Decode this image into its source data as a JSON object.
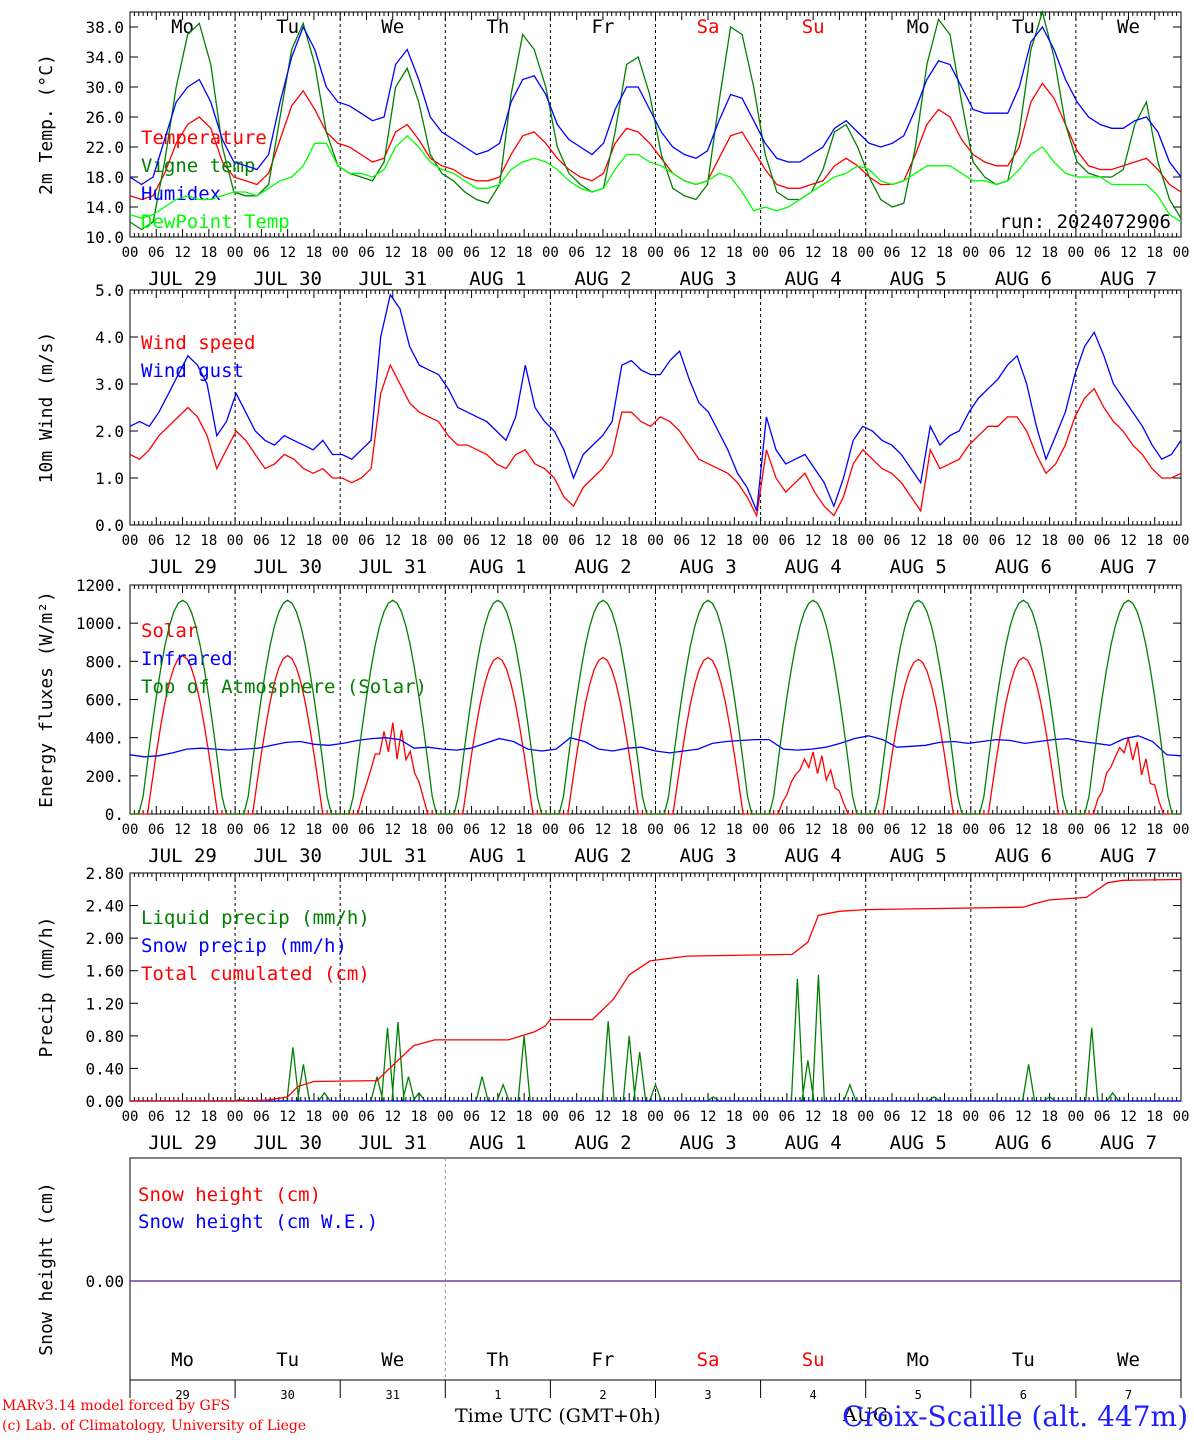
{
  "chart_data": [
    {
      "type": "line",
      "ylabel": "2m Temp. (°C)",
      "ylim": [
        10,
        40
      ],
      "yticks": [
        "10.0",
        "14.0",
        "18.0",
        "22.0",
        "26.0",
        "30.0",
        "34.0",
        "38.0"
      ],
      "run_label": "run: 2024072906",
      "series": [
        {
          "name": "Temperature",
          "color": "#ff0000",
          "values": [
            15.5,
            15.0,
            15.5,
            18.5,
            22.5,
            25.0,
            26.0,
            24.5,
            20.0,
            18.0,
            17.5,
            17.0,
            18.5,
            23.0,
            27.5,
            29.5,
            27.0,
            24.0,
            22.5,
            22.0,
            21.0,
            20.0,
            20.5,
            24.0,
            25.0,
            23.0,
            20.5,
            19.5,
            19.0,
            18.0,
            17.5,
            17.5,
            18.0,
            21.0,
            23.5,
            24.0,
            22.5,
            20.5,
            19.0,
            18.0,
            17.5,
            18.5,
            22.5,
            24.5,
            24.0,
            22.5,
            20.5,
            18.5,
            17.5,
            17.0,
            17.5,
            20.5,
            23.5,
            24.0,
            21.5,
            19.0,
            17.0,
            16.5,
            16.5,
            17.0,
            17.5,
            19.5,
            20.5,
            19.5,
            18.0,
            17.0,
            17.0,
            17.5,
            21.0,
            25.0,
            27.0,
            26.0,
            23.0,
            21.0,
            20.0,
            19.5,
            19.5,
            22.0,
            28.0,
            30.5,
            28.5,
            25.0,
            21.5,
            19.5,
            19.0,
            19.0,
            19.5,
            20.0,
            20.5,
            19.0,
            17.0,
            16.0
          ]
        },
        {
          "name": "Vigne temp",
          "color": "#008000",
          "values": [
            12.0,
            11.0,
            12.0,
            20.0,
            30.0,
            37.0,
            38.5,
            33.0,
            22.0,
            16.0,
            15.5,
            15.5,
            17.0,
            26.0,
            35.0,
            38.5,
            33.0,
            24.0,
            19.5,
            18.5,
            18.0,
            17.5,
            20.0,
            30.0,
            32.5,
            28.0,
            21.0,
            18.5,
            17.5,
            16.0,
            15.0,
            14.5,
            17.0,
            29.0,
            37.0,
            35.0,
            30.0,
            22.0,
            18.5,
            17.0,
            16.0,
            16.5,
            24.0,
            33.0,
            34.0,
            29.0,
            21.0,
            16.5,
            15.5,
            15.0,
            17.0,
            28.0,
            38.0,
            37.0,
            30.0,
            21.0,
            16.0,
            15.0,
            15.0,
            16.0,
            19.0,
            24.0,
            25.0,
            22.0,
            18.0,
            15.0,
            14.0,
            14.5,
            22.0,
            33.0,
            39.0,
            37.0,
            28.0,
            20.0,
            18.0,
            17.0,
            17.5,
            24.0,
            35.0,
            40.0,
            34.0,
            25.0,
            20.0,
            18.5,
            18.0,
            18.0,
            19.0,
            25.0,
            28.0,
            20.0,
            15.0,
            12.5
          ]
        },
        {
          "name": "Humidex",
          "color": "#0000ff",
          "values": [
            18.0,
            17.0,
            18.0,
            23.0,
            28.0,
            30.0,
            31.0,
            28.0,
            23.0,
            20.0,
            19.5,
            19.0,
            21.0,
            28.0,
            34.0,
            38.0,
            35.0,
            30.0,
            28.0,
            27.5,
            26.5,
            25.5,
            26.0,
            33.0,
            35.0,
            31.0,
            26.0,
            24.0,
            23.0,
            22.0,
            21.0,
            21.5,
            22.5,
            28.0,
            31.0,
            31.5,
            29.0,
            25.0,
            23.0,
            22.0,
            21.0,
            22.5,
            27.0,
            30.0,
            30.0,
            27.0,
            24.0,
            22.0,
            21.0,
            20.5,
            21.5,
            25.5,
            29.0,
            28.5,
            25.5,
            22.5,
            20.5,
            20.0,
            20.0,
            21.0,
            22.0,
            24.5,
            25.5,
            24.0,
            22.5,
            22.0,
            22.5,
            23.5,
            27.0,
            31.0,
            33.5,
            33.0,
            30.0,
            27.0,
            26.5,
            26.5,
            26.5,
            30.0,
            36.0,
            38.0,
            35.0,
            31.0,
            28.0,
            26.0,
            25.0,
            24.5,
            24.5,
            25.5,
            26.0,
            24.0,
            20.0,
            18.0
          ]
        },
        {
          "name": "DewPoint Temp",
          "color": "#00ff00",
          "values": [
            13.0,
            12.5,
            13.0,
            14.0,
            15.0,
            15.5,
            15.0,
            15.0,
            15.5,
            16.0,
            16.0,
            15.5,
            16.5,
            17.5,
            18.0,
            19.5,
            22.5,
            22.5,
            19.5,
            18.5,
            18.5,
            18.0,
            19.0,
            22.0,
            23.5,
            22.0,
            20.0,
            19.0,
            18.5,
            17.5,
            16.5,
            16.5,
            17.0,
            19.0,
            20.0,
            20.5,
            20.0,
            19.0,
            17.5,
            16.5,
            16.0,
            16.5,
            19.0,
            21.0,
            21.0,
            20.0,
            19.5,
            18.5,
            17.5,
            17.0,
            17.5,
            18.5,
            18.0,
            16.0,
            13.5,
            14.0,
            13.5,
            14.0,
            15.0,
            16.0,
            17.0,
            18.0,
            18.5,
            19.5,
            19.0,
            17.5,
            17.0,
            17.5,
            18.5,
            19.5,
            19.5,
            19.5,
            18.5,
            17.5,
            17.5,
            17.0,
            17.5,
            19.0,
            21.0,
            22.0,
            20.0,
            18.5,
            18.0,
            18.0,
            18.0,
            17.0,
            17.0,
            17.0,
            17.0,
            15.5,
            13.0,
            12.0
          ]
        }
      ]
    },
    {
      "type": "line",
      "ylabel": "10m Wind (m/s)",
      "ylim": [
        0,
        5
      ],
      "yticks": [
        "0.0",
        "1.0",
        "2.0",
        "3.0",
        "4.0",
        "5.0"
      ],
      "series": [
        {
          "name": "Wind speed",
          "color": "#ff0000",
          "values": [
            1.5,
            1.4,
            1.6,
            1.9,
            2.1,
            2.3,
            2.5,
            2.3,
            1.9,
            1.2,
            1.6,
            2.0,
            1.8,
            1.5,
            1.2,
            1.3,
            1.5,
            1.4,
            1.2,
            1.1,
            1.2,
            1.0,
            1.0,
            0.9,
            1.0,
            1.2,
            2.8,
            3.4,
            3.0,
            2.6,
            2.4,
            2.3,
            2.2,
            1.9,
            1.7,
            1.7,
            1.6,
            1.5,
            1.3,
            1.2,
            1.5,
            1.6,
            1.3,
            1.2,
            1.0,
            0.6,
            0.4,
            0.8,
            1.0,
            1.2,
            1.5,
            2.4,
            2.4,
            2.2,
            2.1,
            2.3,
            2.2,
            2.0,
            1.7,
            1.4,
            1.3,
            1.2,
            1.1,
            0.9,
            0.6,
            0.2,
            1.6,
            1.0,
            0.7,
            0.9,
            1.1,
            0.7,
            0.4,
            0.2,
            0.6,
            1.3,
            1.6,
            1.4,
            1.2,
            1.1,
            0.9,
            0.6,
            0.3,
            1.6,
            1.2,
            1.3,
            1.4,
            1.7,
            1.9,
            2.1,
            2.1,
            2.3,
            2.3,
            2.0,
            1.5,
            1.1,
            1.3,
            1.7,
            2.3,
            2.7,
            2.9,
            2.5,
            2.2,
            2.0,
            1.7,
            1.5,
            1.2,
            1.0,
            1.0,
            1.1
          ]
        },
        {
          "name": "Wind gust",
          "color": "#0000ff",
          "values": [
            2.1,
            2.2,
            2.1,
            2.4,
            2.8,
            3.2,
            3.6,
            3.4,
            3.0,
            1.9,
            2.2,
            2.8,
            2.4,
            2.0,
            1.8,
            1.7,
            1.9,
            1.8,
            1.7,
            1.6,
            1.8,
            1.5,
            1.5,
            1.4,
            1.6,
            1.8,
            4.0,
            4.9,
            4.6,
            3.8,
            3.4,
            3.3,
            3.2,
            2.9,
            2.5,
            2.4,
            2.3,
            2.2,
            2.0,
            1.8,
            2.3,
            3.4,
            2.5,
            2.2,
            2.0,
            1.6,
            1.0,
            1.5,
            1.7,
            1.9,
            2.2,
            3.4,
            3.5,
            3.3,
            3.2,
            3.2,
            3.5,
            3.7,
            3.1,
            2.6,
            2.4,
            2.0,
            1.6,
            1.1,
            0.8,
            0.3,
            2.3,
            1.6,
            1.3,
            1.4,
            1.5,
            1.2,
            0.9,
            0.4,
            1.0,
            1.8,
            2.1,
            2.0,
            1.8,
            1.7,
            1.5,
            1.2,
            0.9,
            2.1,
            1.7,
            1.9,
            2.0,
            2.4,
            2.7,
            2.9,
            3.1,
            3.4,
            3.6,
            3.0,
            2.1,
            1.4,
            1.9,
            2.4,
            3.2,
            3.8,
            4.1,
            3.6,
            3.0,
            2.7,
            2.4,
            2.1,
            1.7,
            1.4,
            1.5,
            1.8
          ]
        }
      ]
    },
    {
      "type": "line",
      "ylabel": "Energy fluxes (W/m²)",
      "ylim": [
        0,
        1200
      ],
      "yticks": [
        "0.",
        "200.",
        "400.",
        "600.",
        "800.",
        "1000.",
        "1200."
      ],
      "series": [
        {
          "name": "Solar",
          "color": "#ff0000",
          "peaks": [
            830,
            830,
            480,
            820,
            820,
            820,
            330,
            810,
            820,
            410
          ]
        },
        {
          "name": "Infrared",
          "color": "#0000ff",
          "values": [
            310,
            300,
            305,
            320,
            340,
            345,
            340,
            335,
            340,
            345,
            360,
            375,
            380,
            365,
            360,
            370,
            385,
            395,
            400,
            390,
            345,
            350,
            340,
            335,
            345,
            370,
            395,
            380,
            340,
            330,
            340,
            400,
            380,
            340,
            330,
            345,
            350,
            330,
            320,
            330,
            340,
            370,
            380,
            385,
            390,
            390,
            340,
            335,
            340,
            350,
            370,
            395,
            410,
            390,
            350,
            355,
            360,
            375,
            380,
            370,
            380,
            390,
            385,
            370,
            380,
            390,
            395,
            380,
            370,
            360,
            395,
            410,
            380,
            310,
            305
          ]
        },
        {
          "name": "Top of Atmosphere (Solar)",
          "color": "#008000",
          "peak": 1120
        }
      ]
    },
    {
      "type": "line",
      "ylabel": "Precip (mm/h)",
      "ylim": [
        0,
        2.8
      ],
      "yticks": [
        "0.00",
        "0.40",
        "0.80",
        "1.20",
        "1.60",
        "2.00",
        "2.40",
        "2.80"
      ],
      "series": [
        {
          "name": "Liquid precip (mm/h)",
          "color": "#008000",
          "events": [
            [
              1.05,
              0.02
            ],
            [
              1.55,
              0.66
            ],
            [
              1.65,
              0.45
            ],
            [
              1.85,
              0.1
            ],
            [
              2.35,
              0.3
            ],
            [
              2.45,
              0.9
            ],
            [
              2.55,
              0.97
            ],
            [
              2.65,
              0.3
            ],
            [
              2.75,
              0.1
            ],
            [
              3.35,
              0.3
            ],
            [
              3.55,
              0.2
            ],
            [
              3.75,
              0.8
            ],
            [
              4.55,
              0.98
            ],
            [
              4.75,
              0.8
            ],
            [
              4.85,
              0.6
            ],
            [
              5.0,
              0.2
            ],
            [
              5.55,
              0.05
            ],
            [
              6.35,
              1.5
            ],
            [
              6.45,
              0.5
            ],
            [
              6.55,
              1.55
            ],
            [
              6.85,
              0.2
            ],
            [
              7.65,
              0.05
            ],
            [
              8.55,
              0.45
            ],
            [
              8.75,
              0.05
            ],
            [
              9.15,
              0.9
            ],
            [
              9.35,
              0.1
            ]
          ]
        },
        {
          "name": "Snow precip (mm/h)",
          "color": "#0000ff",
          "values": [
            0
          ]
        },
        {
          "name": "Total cumulated (cm)",
          "color": "#ff0000",
          "points": [
            [
              0,
              0
            ],
            [
              1.0,
              0
            ],
            [
              1.3,
              0.01
            ],
            [
              1.5,
              0.05
            ],
            [
              1.6,
              0.18
            ],
            [
              1.75,
              0.24
            ],
            [
              2.35,
              0.25
            ],
            [
              2.55,
              0.5
            ],
            [
              2.7,
              0.68
            ],
            [
              2.9,
              0.75
            ],
            [
              3.6,
              0.75
            ],
            [
              3.85,
              0.85
            ],
            [
              3.95,
              0.92
            ],
            [
              4.0,
              1.0
            ],
            [
              4.4,
              1.0
            ],
            [
              4.6,
              1.25
            ],
            [
              4.75,
              1.55
            ],
            [
              4.95,
              1.72
            ],
            [
              5.3,
              1.78
            ],
            [
              6.3,
              1.8
            ],
            [
              6.45,
              1.95
            ],
            [
              6.55,
              2.28
            ],
            [
              6.75,
              2.33
            ],
            [
              7.0,
              2.35
            ],
            [
              8.5,
              2.38
            ],
            [
              8.6,
              2.42
            ],
            [
              8.75,
              2.47
            ],
            [
              9.1,
              2.5
            ],
            [
              9.3,
              2.68
            ],
            [
              9.45,
              2.71
            ],
            [
              10,
              2.72
            ]
          ]
        }
      ]
    },
    {
      "type": "line",
      "ylabel": "Snow height (cm)",
      "yticks": [
        "0.00"
      ],
      "series": [
        {
          "name": "Snow height (cm)",
          "color": "#ff0000",
          "values": [
            0,
            0
          ]
        },
        {
          "name": "Snow height (cm W.E.)",
          "color": "#0000ff",
          "values": [
            0,
            0
          ]
        }
      ]
    }
  ],
  "days": [
    "Mo",
    "Tu",
    "We",
    "Th",
    "Fr",
    "Sa",
    "Su",
    "Mo",
    "Tu",
    "We"
  ],
  "weekend_color": "#ff0000",
  "dates": [
    "JUL 29",
    "JUL 30",
    "JUL 31",
    "AUG  1",
    "AUG  2",
    "AUG  3",
    "AUG  4",
    "AUG  5",
    "AUG  6",
    "AUG  7"
  ],
  "day_numbers": [
    "29",
    "30",
    "31",
    "1",
    "2",
    "3",
    "4",
    "5",
    "6",
    "7"
  ],
  "hour_ticks": [
    "00",
    "06",
    "12",
    "18"
  ],
  "footer": {
    "model_line": "MARv3.14 model forced by GFS",
    "credit_line": "(c) Lab. of Climatology, University of Liege",
    "xlabel": "Time UTC (GMT+0h)",
    "month": "AUG",
    "station": "Croix-Scaille (alt. 447m)"
  }
}
